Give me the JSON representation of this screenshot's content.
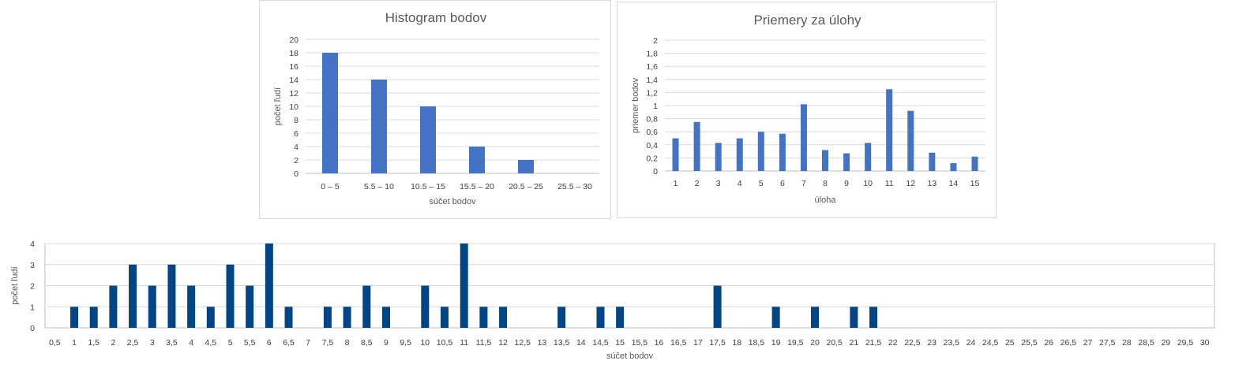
{
  "chart_data": [
    {
      "type": "bar",
      "title": "Histogram bodov",
      "xlabel": "súčet bodov",
      "ylabel": "počet ľudí",
      "categories": [
        "0 – 5",
        "5.5 – 10",
        "10.5 – 15",
        "15.5 – 20",
        "20.5 – 25",
        "25.5 – 30"
      ],
      "values": [
        18,
        14,
        10,
        4,
        2,
        0
      ],
      "ylim": [
        0,
        20
      ],
      "yticks": [
        "0",
        "2",
        "4",
        "6",
        "8",
        "10",
        "12",
        "14",
        "16",
        "18",
        "20"
      ],
      "grid": true,
      "color": "#4472c4"
    },
    {
      "type": "bar",
      "title": "Priemery za úlohy",
      "xlabel": "úloha",
      "ylabel": "priemer bodov",
      "categories": [
        "1",
        "2",
        "3",
        "4",
        "5",
        "6",
        "7",
        "8",
        "9",
        "10",
        "11",
        "12",
        "13",
        "14",
        "15"
      ],
      "values": [
        0.5,
        0.75,
        0.43,
        0.5,
        0.6,
        0.57,
        1.02,
        0.32,
        0.27,
        0.43,
        1.25,
        0.92,
        0.28,
        0.12,
        0.22
      ],
      "ylim": [
        0,
        2
      ],
      "yticks": [
        "0",
        "0,2",
        "0,4",
        "0,6",
        "0,8",
        "1",
        "1,2",
        "1,4",
        "1,6",
        "1,8",
        "2"
      ],
      "grid": true,
      "color": "#4472c4"
    },
    {
      "type": "bar",
      "title": "",
      "xlabel": "súčet bodov",
      "ylabel": "počet ľudí",
      "categories": [
        "0,5",
        "1",
        "1,5",
        "2",
        "2,5",
        "3",
        "3,5",
        "4",
        "4,5",
        "5",
        "5,5",
        "6",
        "6,5",
        "7",
        "7,5",
        "8",
        "8,5",
        "9",
        "9,5",
        "10",
        "10,5",
        "11",
        "11,5",
        "12",
        "12,5",
        "13",
        "13,5",
        "14",
        "14,5",
        "15",
        "15,5",
        "16",
        "16,5",
        "17",
        "17,5",
        "18",
        "18,5",
        "19",
        "19,5",
        "20",
        "20,5",
        "21",
        "21,5",
        "22",
        "22,5",
        "23",
        "23,5",
        "24",
        "24,5",
        "25",
        "25,5",
        "26",
        "26,5",
        "27",
        "27,5",
        "28",
        "28,5",
        "29",
        "29,5",
        "30"
      ],
      "values": [
        0,
        1,
        1,
        2,
        3,
        2,
        3,
        2,
        1,
        3,
        2,
        4,
        1,
        0,
        1,
        1,
        2,
        1,
        0,
        2,
        1,
        4,
        1,
        1,
        0,
        0,
        1,
        0,
        1,
        1,
        0,
        0,
        0,
        0,
        2,
        0,
        0,
        1,
        0,
        1,
        0,
        1,
        1,
        0,
        0,
        0,
        0,
        0,
        0,
        0,
        0,
        0,
        0,
        0,
        0,
        0,
        0,
        0,
        0,
        0
      ],
      "ylim": [
        0,
        4
      ],
      "yticks": [
        "0",
        "1",
        "2",
        "3",
        "4"
      ],
      "grid": true,
      "color": "#004586"
    }
  ]
}
